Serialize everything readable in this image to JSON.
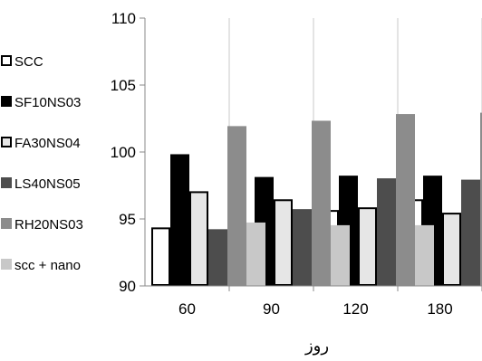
{
  "chart_data": {
    "type": "bar",
    "title": "",
    "xlabel": "روز",
    "ylabel": "",
    "categories": [
      "60",
      "90",
      "120",
      "180"
    ],
    "ylim": [
      90,
      110
    ],
    "yticks": [
      "90",
      "95",
      "100",
      "105",
      "110"
    ],
    "grid": "vertical",
    "legend_position": "left",
    "series": [
      {
        "name": "SCC",
        "color": "#ffffff",
        "stroke": "#000000",
        "values": [
          94.3,
          94.4,
          95.6,
          96.4
        ]
      },
      {
        "name": "SF10NS03",
        "color": "#000000",
        "stroke": "#000000",
        "values": [
          99.8,
          98.1,
          98.2,
          98.2
        ]
      },
      {
        "name": "FA30NS04",
        "color": "#e6e6e6",
        "stroke": "#000000",
        "values": [
          97.0,
          96.4,
          95.8,
          95.4
        ]
      },
      {
        "name": "LS40NS05",
        "color": "#4d4d4d",
        "stroke": "#4d4d4d",
        "values": [
          94.2,
          95.7,
          98.0,
          97.9
        ]
      },
      {
        "name": "RH20NS03",
        "color": "#8c8c8c",
        "stroke": "#8c8c8c",
        "values": [
          101.9,
          102.3,
          102.8,
          102.9
        ]
      },
      {
        "name": "scc + nano",
        "color": "#c8c8c8",
        "stroke": "#c8c8c8",
        "values": [
          94.7,
          94.5,
          94.5,
          95.1
        ]
      }
    ]
  }
}
